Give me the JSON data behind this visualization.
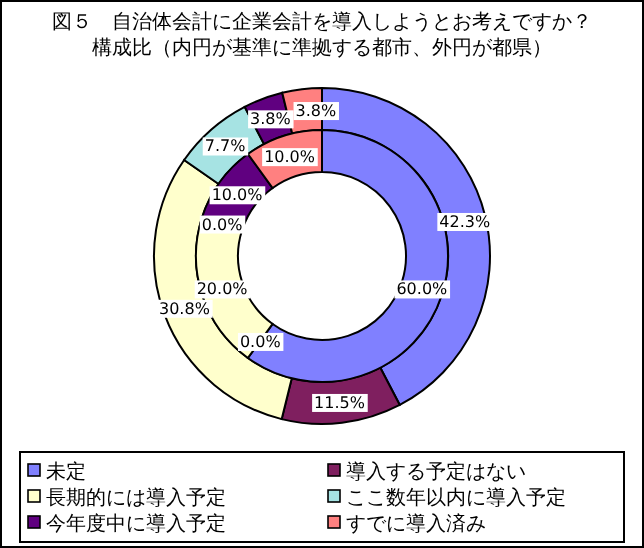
{
  "chart_data": {
    "type": "donut",
    "title": "図５　自治体会計に企業会計を導入しようとお考えですか？",
    "subtitle": "構成比（内円が基準に準拠する都市、外円が都県）",
    "categories": [
      "未定",
      "導入する予定はない",
      "長期的には導入予定",
      "ここ数年以内に導入予定",
      "今年度中に導入予定",
      "すでに導入済み"
    ],
    "colors": [
      "#8080ff",
      "#7f1f5f",
      "#ffffcc",
      "#a6e3e3",
      "#600080",
      "#ff8080"
    ],
    "series": [
      {
        "values": [
          42.3,
          11.5,
          30.8,
          7.7,
          3.8,
          3.8
        ],
        "value_labels": [
          "42.3%",
          "11.5%",
          "30.8%",
          "7.7%",
          "3.8%",
          "3.8%"
        ]
      },
      {
        "values": [
          60,
          0,
          20,
          0,
          10,
          10
        ],
        "value_labels": [
          "60.0%",
          "0.0%",
          "20.0%",
          "0.0%",
          "10.0%",
          "10.0%"
        ]
      }
    ],
    "legend": "bottom"
  }
}
